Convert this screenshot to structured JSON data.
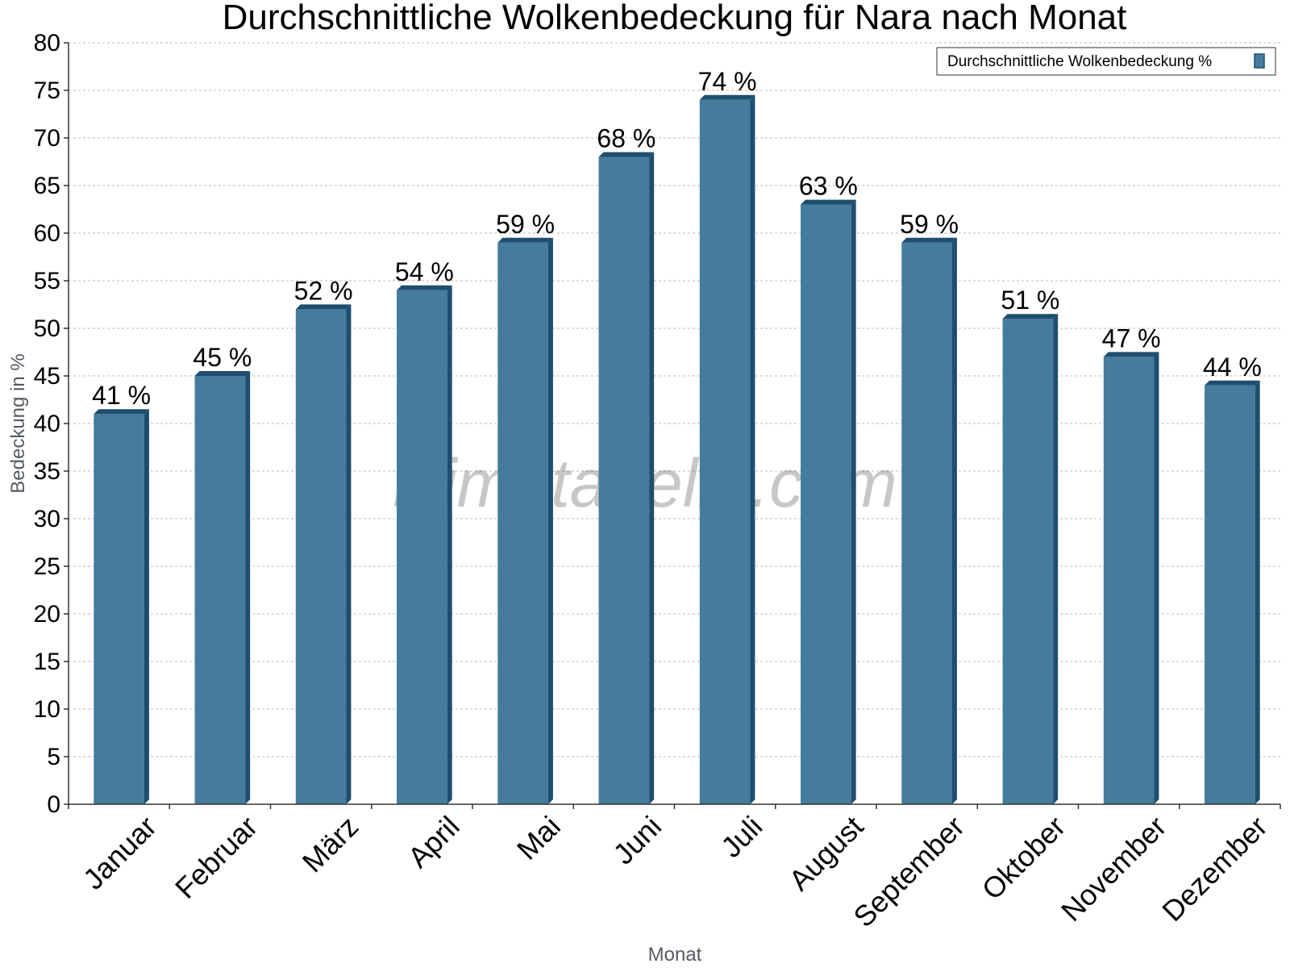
{
  "chart_data": {
    "type": "bar",
    "title": "Durchschnittliche Wolkenbedeckung für Nara nach Monat",
    "xlabel": "Monat",
    "ylabel": "Bedeckung in %",
    "categories": [
      "Januar",
      "Februar",
      "März",
      "April",
      "Mai",
      "Juni",
      "Juli",
      "August",
      "September",
      "Oktober",
      "November",
      "Dezember"
    ],
    "series": [
      {
        "name": "Durchschnittliche Wolkenbedeckung %",
        "values": [
          41,
          45,
          52,
          54,
          59,
          68,
          74,
          63,
          59,
          51,
          47,
          44
        ],
        "labels": [
          "41 %",
          "45 %",
          "52 %",
          "54 %",
          "59 %",
          "68 %",
          "74 %",
          "63 %",
          "59 %",
          "51 %",
          "47 %",
          "44 %"
        ],
        "color": "#457b9d",
        "side_color": "#1d4e6e"
      }
    ],
    "ylim": [
      0,
      80
    ],
    "yticks": [
      0,
      5,
      10,
      15,
      20,
      25,
      30,
      35,
      40,
      45,
      50,
      55,
      60,
      65,
      70,
      75,
      80
    ],
    "grid": true,
    "legend_position": "top-right",
    "watermark": "klimatabelle.com"
  }
}
